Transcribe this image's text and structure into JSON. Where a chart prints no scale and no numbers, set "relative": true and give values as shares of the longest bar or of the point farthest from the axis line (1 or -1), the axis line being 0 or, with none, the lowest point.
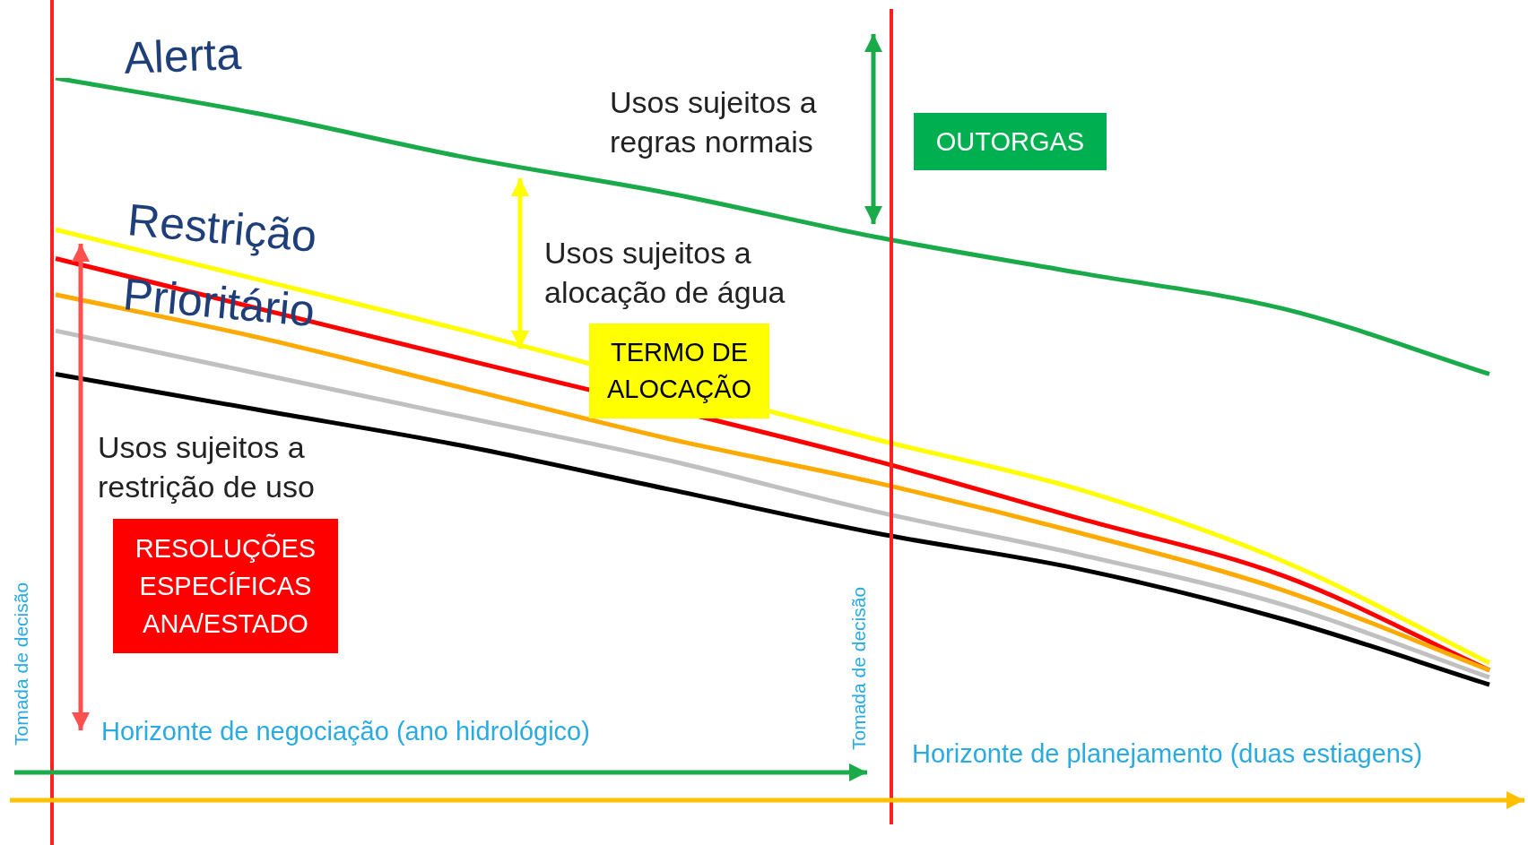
{
  "chart_data": {
    "type": "line",
    "relative": true,
    "categories": [
      null,
      null,
      null,
      null,
      null,
      null,
      null,
      null
    ],
    "series": [
      {
        "name": "Alerta",
        "color": "#1aaa4a",
        "values": [
          1,
          0.95,
          0.89,
          0.84,
          0.78,
          0.73,
          0.68,
          0.59
        ]
      },
      {
        "name": "Restrição",
        "color": "#ffff00",
        "values": [
          0.79,
          0.72,
          0.65,
          null,
          0.5,
          0.43,
          0.33,
          0.19
        ]
      },
      {
        "name": "Prioritário",
        "color": "#ff0000",
        "values": [
          0.75,
          0.68,
          0.61,
          null,
          0.47,
          0.39,
          0.31,
          0.18
        ]
      },
      {
        "color": "#ffaa00",
        "values": [
          0.7,
          0.64,
          0.57,
          0.5,
          0.44,
          0.37,
          0.29,
          0.18
        ]
      },
      {
        "color": "#c0c0c0",
        "values": [
          0.65,
          0.59,
          0.53,
          0.47,
          0.4,
          0.34,
          0.27,
          0.17
        ]
      },
      {
        "color": "#000000",
        "values": [
          0.59,
          0.54,
          0.49,
          0.43,
          0.37,
          0.32,
          0.25,
          0.16
        ]
      }
    ],
    "annotations": [
      "Usos sujeitos a regras normais",
      "Usos sujeitos a alocação de água",
      "Usos sujeitos a restrição de uso",
      "OUTORGAS",
      "TERMO DE ALOCAÇÃO",
      "RESOLUÇÕES ESPECÍFICAS ANA/ESTADO",
      "Tomada de decisão",
      "Tomada de decisão",
      "Horizonte de negociação (ano hidrológico)",
      "Horizonte de planejamento (duas estiagens)"
    ]
  }
}
